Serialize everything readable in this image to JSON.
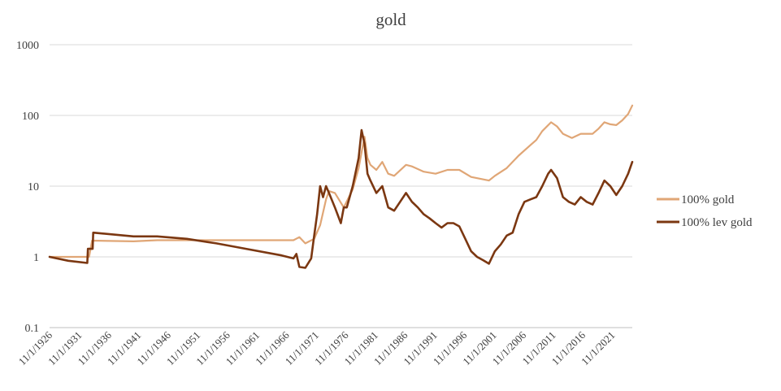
{
  "chart_data": {
    "type": "line",
    "title": "gold",
    "yscale": "log",
    "ylim": [
      0.1,
      1000
    ],
    "yticks": [
      "0.1",
      "1",
      "10",
      "100",
      "1000"
    ],
    "xlim": [
      1926.83,
      2025.2
    ],
    "xticks": [
      "11/1/1926",
      "11/1/1931",
      "11/1/1936",
      "11/1/1941",
      "11/1/1946",
      "11/1/1951",
      "11/1/1956",
      "11/1/1961",
      "11/1/1966",
      "11/1/1971",
      "11/1/1976",
      "11/1/1981",
      "11/1/1986",
      "11/1/1991",
      "11/1/1996",
      "11/1/2001",
      "11/1/2006",
      "11/1/2011",
      "11/1/2016",
      "11/1/2021"
    ],
    "grid": true,
    "legend_position": "right",
    "series": [
      {
        "name": "100% gold",
        "color": "#e0a676",
        "points": [
          [
            1926.83,
            1.0
          ],
          [
            1933.5,
            1.0
          ],
          [
            1934.0,
            1.7
          ],
          [
            1941.0,
            1.66
          ],
          [
            1945.0,
            1.72
          ],
          [
            1968.0,
            1.72
          ],
          [
            1969.0,
            1.9
          ],
          [
            1970.0,
            1.55
          ],
          [
            1971.5,
            1.8
          ],
          [
            1972.5,
            2.8
          ],
          [
            1973.5,
            6.5
          ],
          [
            1974.0,
            8.5
          ],
          [
            1975.0,
            8.0
          ],
          [
            1976.5,
            5.0
          ],
          [
            1978.0,
            9.0
          ],
          [
            1979.0,
            18.0
          ],
          [
            1980.0,
            50.0
          ],
          [
            1980.5,
            25.0
          ],
          [
            1981.0,
            20.0
          ],
          [
            1982.0,
            17.0
          ],
          [
            1983.0,
            22.0
          ],
          [
            1984.0,
            15.0
          ],
          [
            1985.0,
            14.0
          ],
          [
            1987.0,
            20.0
          ],
          [
            1988.0,
            19.0
          ],
          [
            1990.0,
            16.0
          ],
          [
            1992.0,
            15.0
          ],
          [
            1994.0,
            17.0
          ],
          [
            1996.0,
            17.0
          ],
          [
            1998.0,
            13.5
          ],
          [
            2001.0,
            12.0
          ],
          [
            2002.0,
            14.0
          ],
          [
            2004.0,
            18.0
          ],
          [
            2006.0,
            27.0
          ],
          [
            2008.0,
            38.0
          ],
          [
            2009.0,
            45.0
          ],
          [
            2010.0,
            60.0
          ],
          [
            2011.5,
            80.0
          ],
          [
            2012.5,
            70.0
          ],
          [
            2013.5,
            55.0
          ],
          [
            2015.0,
            48.0
          ],
          [
            2016.5,
            55.0
          ],
          [
            2018.5,
            55.0
          ],
          [
            2019.5,
            65.0
          ],
          [
            2020.5,
            80.0
          ],
          [
            2021.5,
            75.0
          ],
          [
            2022.5,
            73.0
          ],
          [
            2023.5,
            85.0
          ],
          [
            2024.5,
            105.0
          ],
          [
            2025.2,
            138.0
          ]
        ]
      },
      {
        "name": "100% lev gold",
        "color": "#7b3711",
        "points": [
          [
            1926.83,
            1.0
          ],
          [
            1930.0,
            0.88
          ],
          [
            1933.2,
            0.82
          ],
          [
            1933.3,
            1.3
          ],
          [
            1934.1,
            1.3
          ],
          [
            1934.2,
            2.2
          ],
          [
            1941.0,
            1.95
          ],
          [
            1945.0,
            1.95
          ],
          [
            1950.0,
            1.8
          ],
          [
            1955.0,
            1.55
          ],
          [
            1960.0,
            1.3
          ],
          [
            1966.0,
            1.05
          ],
          [
            1968.0,
            0.95
          ],
          [
            1968.5,
            1.1
          ],
          [
            1969.0,
            0.72
          ],
          [
            1970.0,
            0.7
          ],
          [
            1971.0,
            0.95
          ],
          [
            1971.5,
            2.0
          ],
          [
            1972.0,
            4.0
          ],
          [
            1972.5,
            10.0
          ],
          [
            1973.0,
            7.0
          ],
          [
            1973.5,
            10.0
          ],
          [
            1974.0,
            8.0
          ],
          [
            1975.0,
            5.0
          ],
          [
            1976.0,
            3.0
          ],
          [
            1976.5,
            5.0
          ],
          [
            1977.0,
            5.0
          ],
          [
            1978.0,
            10.0
          ],
          [
            1979.0,
            25.0
          ],
          [
            1979.5,
            62.0
          ],
          [
            1980.0,
            40.0
          ],
          [
            1980.5,
            15.0
          ],
          [
            1981.0,
            12.0
          ],
          [
            1982.0,
            8.0
          ],
          [
            1983.0,
            10.0
          ],
          [
            1984.0,
            5.0
          ],
          [
            1985.0,
            4.5
          ],
          [
            1986.0,
            6.0
          ],
          [
            1987.0,
            8.0
          ],
          [
            1988.0,
            6.0
          ],
          [
            1989.0,
            5.0
          ],
          [
            1990.0,
            4.0
          ],
          [
            1991.0,
            3.5
          ],
          [
            1992.0,
            3.0
          ],
          [
            1993.0,
            2.6
          ],
          [
            1994.0,
            3.0
          ],
          [
            1995.0,
            3.0
          ],
          [
            1996.0,
            2.7
          ],
          [
            1997.0,
            1.8
          ],
          [
            1998.0,
            1.2
          ],
          [
            1999.0,
            1.0
          ],
          [
            2000.0,
            0.9
          ],
          [
            2001.0,
            0.8
          ],
          [
            2002.0,
            1.2
          ],
          [
            2003.0,
            1.5
          ],
          [
            2004.0,
            2.0
          ],
          [
            2005.0,
            2.2
          ],
          [
            2006.0,
            4.0
          ],
          [
            2007.0,
            6.0
          ],
          [
            2008.0,
            6.5
          ],
          [
            2009.0,
            7.0
          ],
          [
            2010.0,
            10.0
          ],
          [
            2011.0,
            15.0
          ],
          [
            2011.5,
            17.0
          ],
          [
            2012.5,
            13.0
          ],
          [
            2013.5,
            7.0
          ],
          [
            2014.5,
            6.0
          ],
          [
            2015.5,
            5.5
          ],
          [
            2016.5,
            7.0
          ],
          [
            2017.5,
            6.0
          ],
          [
            2018.5,
            5.5
          ],
          [
            2019.5,
            8.0
          ],
          [
            2020.5,
            12.0
          ],
          [
            2021.5,
            10.0
          ],
          [
            2022.5,
            7.5
          ],
          [
            2023.5,
            10.0
          ],
          [
            2024.5,
            15.0
          ],
          [
            2025.2,
            22.0
          ]
        ]
      }
    ]
  }
}
